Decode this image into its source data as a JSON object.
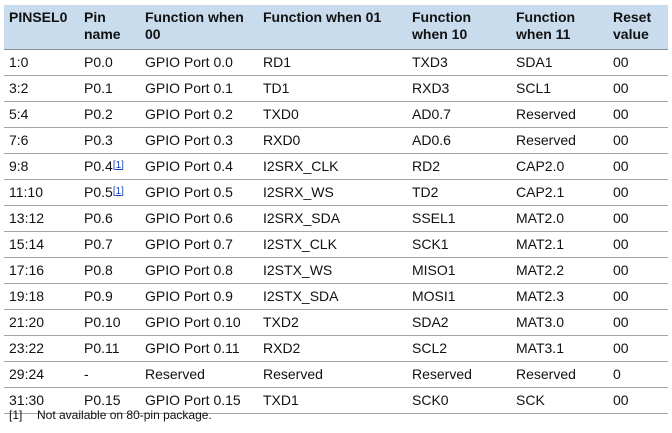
{
  "table": {
    "columns": [
      "PINSEL0",
      "Pin name",
      "Function when 00",
      "Function when 01",
      "Function when 10",
      "Function when 11",
      "Reset value"
    ],
    "rows": [
      {
        "bits": "1:0",
        "pin": "P0.0",
        "note": "",
        "f00": "GPIO Port 0.0",
        "f01": "RD1",
        "f10": "TXD3",
        "f11": "SDA1",
        "reset": "00"
      },
      {
        "bits": "3:2",
        "pin": "P0.1",
        "note": "",
        "f00": "GPIO Port 0.1",
        "f01": "TD1",
        "f10": "RXD3",
        "f11": "SCL1",
        "reset": "00"
      },
      {
        "bits": "5:4",
        "pin": "P0.2",
        "note": "",
        "f00": "GPIO Port 0.2",
        "f01": "TXD0",
        "f10": "AD0.7",
        "f11": "Reserved",
        "reset": "00"
      },
      {
        "bits": "7:6",
        "pin": "P0.3",
        "note": "",
        "f00": "GPIO Port 0.3",
        "f01": "RXD0",
        "f10": "AD0.6",
        "f11": "Reserved",
        "reset": "00"
      },
      {
        "bits": "9:8",
        "pin": "P0.4",
        "note": "[1]",
        "f00": "GPIO Port 0.4",
        "f01": "I2SRX_CLK",
        "f10": "RD2",
        "f11": "CAP2.0",
        "reset": "00"
      },
      {
        "bits": "11:10",
        "pin": "P0.5",
        "note": "[1]",
        "f00": "GPIO Port 0.5",
        "f01": "I2SRX_WS",
        "f10": "TD2",
        "f11": "CAP2.1",
        "reset": "00"
      },
      {
        "bits": "13:12",
        "pin": "P0.6",
        "note": "",
        "f00": "GPIO Port 0.6",
        "f01": "I2SRX_SDA",
        "f10": "SSEL1",
        "f11": "MAT2.0",
        "reset": "00"
      },
      {
        "bits": "15:14",
        "pin": "P0.7",
        "note": "",
        "f00": "GPIO Port 0.7",
        "f01": "I2STX_CLK",
        "f10": "SCK1",
        "f11": "MAT2.1",
        "reset": "00"
      },
      {
        "bits": "17:16",
        "pin": "P0.8",
        "note": "",
        "f00": "GPIO Port 0.8",
        "f01": "I2STX_WS",
        "f10": "MISO1",
        "f11": "MAT2.2",
        "reset": "00"
      },
      {
        "bits": "19:18",
        "pin": "P0.9",
        "note": "",
        "f00": "GPIO Port 0.9",
        "f01": "I2STX_SDA",
        "f10": "MOSI1",
        "f11": "MAT2.3",
        "reset": "00"
      },
      {
        "bits": "21:20",
        "pin": "P0.10",
        "note": "",
        "f00": "GPIO Port 0.10",
        "f01": "TXD2",
        "f10": "SDA2",
        "f11": "MAT3.0",
        "reset": "00"
      },
      {
        "bits": "23:22",
        "pin": "P0.11",
        "note": "",
        "f00": "GPIO Port 0.11",
        "f01": "RXD2",
        "f10": "SCL2",
        "f11": "MAT3.1",
        "reset": "00"
      },
      {
        "bits": "29:24",
        "pin": "-",
        "note": "",
        "f00": "Reserved",
        "f01": "Reserved",
        "f10": "Reserved",
        "f11": "Reserved",
        "reset": "0"
      },
      {
        "bits": "31:30",
        "pin": "P0.15",
        "note": "",
        "f00": "GPIO Port 0.15",
        "f01": "TXD1",
        "f10": "SCK0",
        "f11": "SCK",
        "reset": "00"
      }
    ]
  },
  "footnote": {
    "mark": "[1]",
    "text": "Not available on 80-pin package."
  },
  "colors": {
    "header_bg": "#c9dced",
    "footnote_link": "#1a3fb8",
    "row_rule": "#a6a6a6"
  }
}
